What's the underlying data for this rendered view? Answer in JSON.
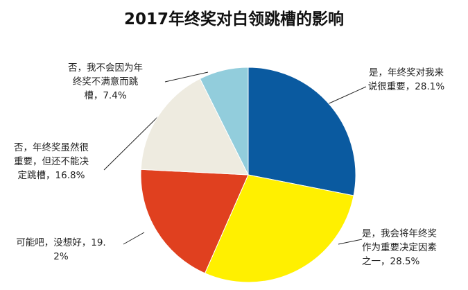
{
  "chart_data": {
    "type": "pie",
    "title": "2017年终奖对白领跳槽的影响",
    "categories": [
      "是，年终奖对我来说很重要，",
      "是，我会将年终奖作为重要决定因素之一，",
      "可能吧，没想好，",
      "否，年终奖虽然很重要，但还不能决定跳槽，",
      "否，我不会因为年终奖不满意而跳槽，"
    ],
    "values": [
      28.1,
      28.5,
      19.2,
      16.8,
      7.4
    ],
    "value_labels": [
      "28.1%",
      "28.5%",
      "19.2%",
      "16.8%",
      "7.4%"
    ],
    "colors": [
      "#0a5aa0",
      "#fff000",
      "#e0401f",
      "#eeebe0",
      "#92cddc"
    ]
  }
}
